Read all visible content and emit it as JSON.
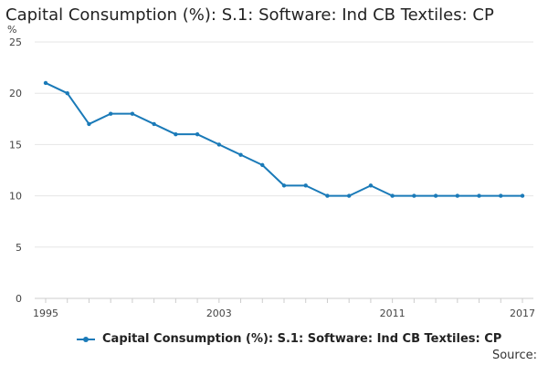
{
  "colors": {
    "series": "#1a7ab8",
    "grid": "#e6e6e6",
    "axis": "#cccccc"
  },
  "footer": {
    "source_label": "Source:"
  },
  "chart_data": {
    "type": "line",
    "title": "Capital Consumption (%): S.1: Software: Ind CB Textiles: CP",
    "ylabel": "%",
    "xlabel": "",
    "ylim": [
      0,
      25
    ],
    "yticks": [
      0,
      5,
      10,
      15,
      20,
      25
    ],
    "xlim": [
      1995,
      2017
    ],
    "xtick_labels": [
      "1995",
      "2003",
      "2011",
      "2017"
    ],
    "grid": true,
    "legend_position": "bottom",
    "series": [
      {
        "name": "Capital Consumption (%): S.1: Software: Ind CB Textiles: CP",
        "x": [
          1995,
          1996,
          1997,
          1998,
          1999,
          2000,
          2001,
          2002,
          2003,
          2004,
          2005,
          2006,
          2007,
          2008,
          2009,
          2010,
          2011,
          2012,
          2013,
          2014,
          2015,
          2016,
          2017
        ],
        "values": [
          21,
          20,
          17,
          18,
          18,
          17,
          16,
          16,
          15,
          14,
          13,
          11,
          11,
          10,
          10,
          11,
          10,
          10,
          10,
          10,
          10,
          10,
          10
        ]
      }
    ]
  }
}
